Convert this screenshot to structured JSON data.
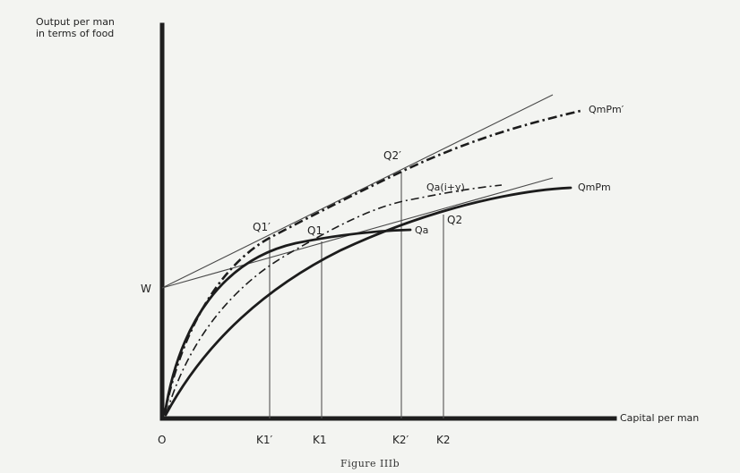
{
  "axes": {
    "y_label_line1": "Output per man",
    "y_label_line2": "in terms of food",
    "x_label": "Capital per man",
    "origin": "O",
    "w_label": "W"
  },
  "x_ticks": [
    "K1′",
    "K1",
    "K2′",
    "K2"
  ],
  "points": [
    "Q1′",
    "Q1",
    "Q2′",
    "Q2"
  ],
  "curve_labels": {
    "qmpm_prime": "QmPm′",
    "qmpm": "QmPm",
    "qa_i_gamma": "Qa(i+γ)",
    "qa": "Qa"
  },
  "caption": "Figure IIIb"
}
